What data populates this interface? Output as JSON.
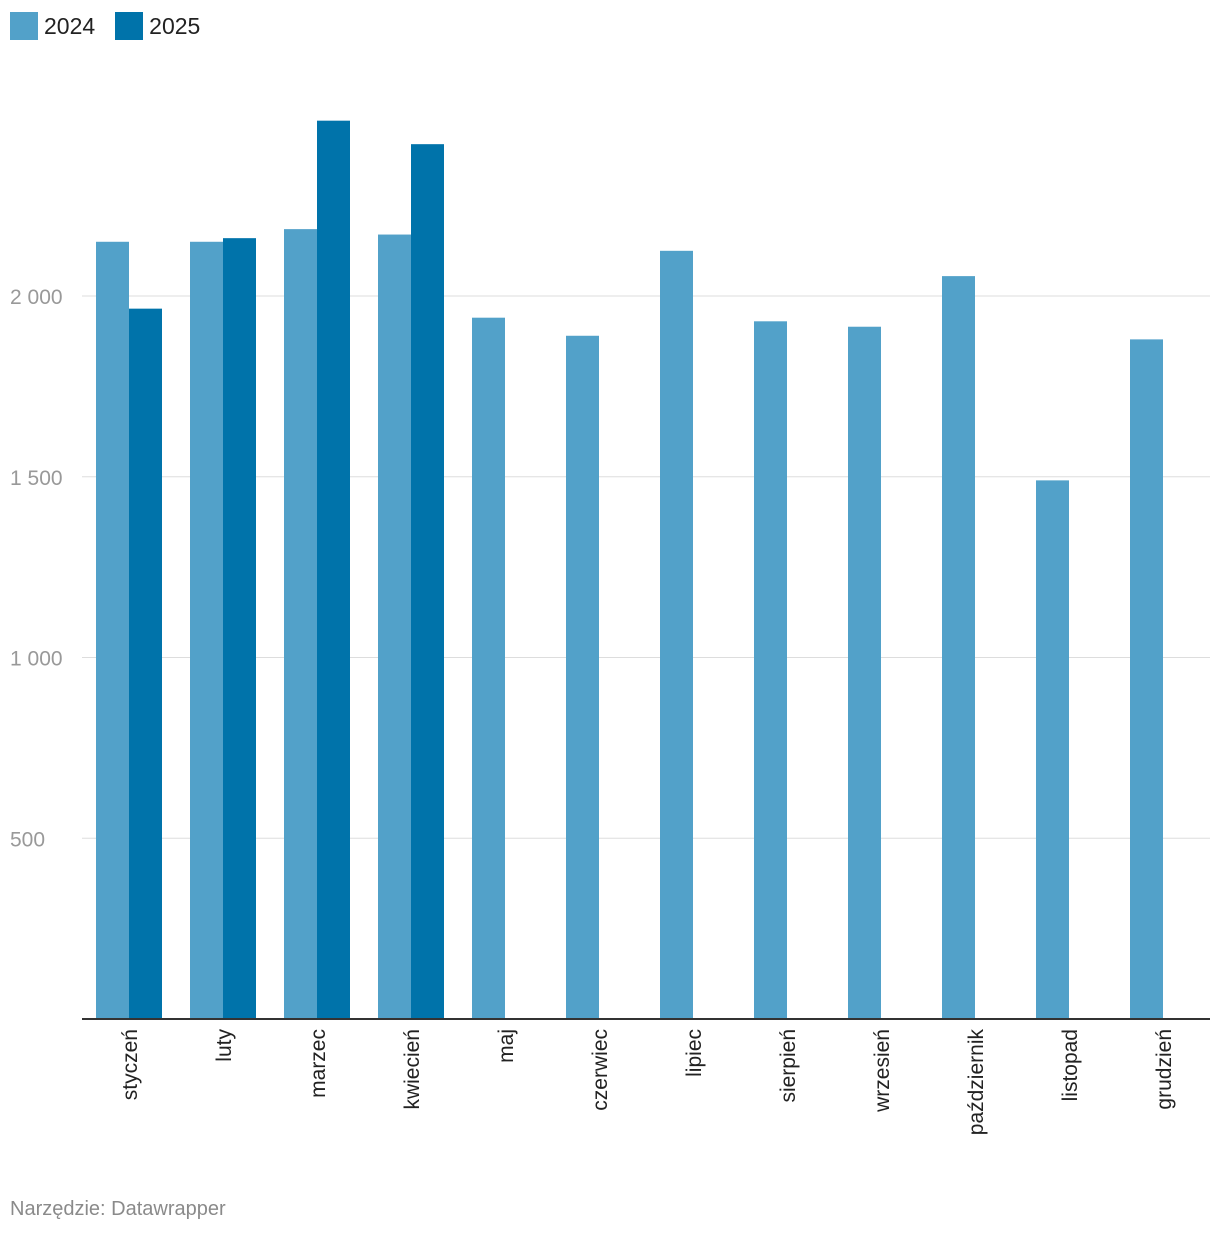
{
  "chart_data": {
    "type": "bar",
    "categories": [
      "styczeń",
      "luty",
      "marzec",
      "kwiecień",
      "maj",
      "czerwiec",
      "lipiec",
      "sierpień",
      "wrzesień",
      "październik",
      "listopad",
      "grudzień"
    ],
    "series": [
      {
        "name": "2024",
        "color": "#52a1c9",
        "values": [
          2150,
          2150,
          2185,
          2170,
          1940,
          1890,
          2125,
          1930,
          1915,
          2055,
          1490,
          1880
        ]
      },
      {
        "name": "2025",
        "color": "#0073aa",
        "values": [
          1965,
          2160,
          2485,
          2420,
          null,
          null,
          null,
          null,
          null,
          null,
          null,
          null
        ]
      }
    ],
    "yticks": [
      500,
      1000,
      1500,
      2000
    ],
    "ytick_labels": [
      "500",
      "1 000",
      "1 500",
      "2 000"
    ],
    "ylim": [
      0,
      2500
    ],
    "grid": true,
    "legend_position": "top-left"
  },
  "footer": {
    "source": "Narzędzie: Datawrapper"
  }
}
